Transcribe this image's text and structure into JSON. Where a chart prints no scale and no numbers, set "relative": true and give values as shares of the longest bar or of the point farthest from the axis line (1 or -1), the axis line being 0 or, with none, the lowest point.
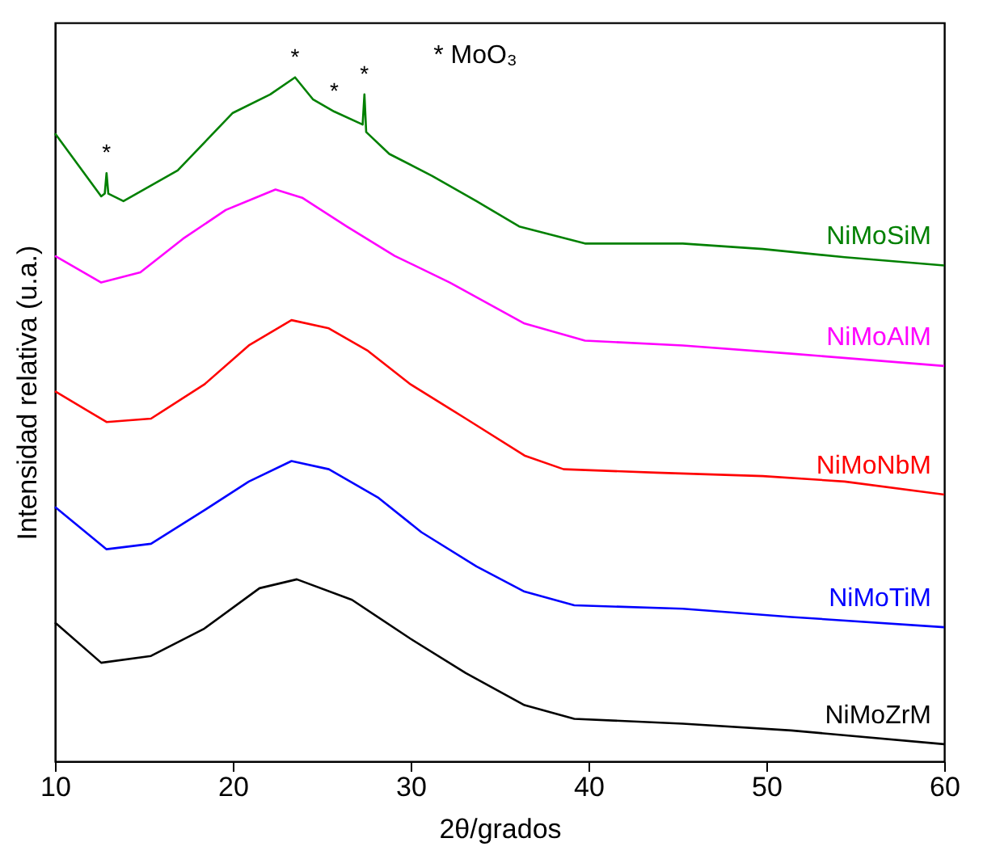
{
  "chart_data": {
    "type": "line",
    "xlabel": "2θ/grados",
    "ylabel": "Intensidad relativa (u.a.)",
    "relative": true,
    "xlim": [
      10,
      60
    ],
    "xticks": [
      10,
      20,
      30,
      40,
      50,
      60
    ],
    "legend": false,
    "x": [
      10,
      12.6,
      12.8,
      12.9,
      13.0,
      13.85,
      16.9,
      20,
      22.1,
      23.5,
      24.5,
      25.7,
      27.3,
      27.4,
      27.5,
      28.8,
      31.2,
      33.7,
      36.1,
      39.8,
      45.3,
      49.8,
      54.4,
      60
    ],
    "series": [
      {
        "name": "NiMoSiM",
        "color": "#008000",
        "values": [
          0.918,
          0.826,
          0.83,
          0.86,
          0.83,
          0.819,
          0.864,
          0.948,
          0.975,
          1.0,
          0.968,
          0.95,
          0.931,
          0.975,
          0.92,
          0.888,
          0.856,
          0.819,
          0.782,
          0.757,
          0.757,
          0.749,
          0.737,
          0.725
        ]
      },
      {
        "name": "NiMoAlM",
        "color": "#ff00ff",
        "x": [
          10,
          12.6,
          14.8,
          17.2,
          19.6,
          22.4,
          23.9,
          26.4,
          29.1,
          32.2,
          36.4,
          39.8,
          45.3,
          51.4,
          60
        ],
        "values": [
          0.739,
          0.7,
          0.715,
          0.764,
          0.806,
          0.836,
          0.824,
          0.782,
          0.739,
          0.7,
          0.64,
          0.615,
          0.608,
          0.596,
          0.578
        ]
      },
      {
        "name": "NiMoNbM",
        "color": "#ff0000",
        "x": [
          10,
          12.9,
          15.4,
          18.4,
          20.9,
          23.3,
          25.4,
          27.6,
          30,
          33.1,
          36.4,
          38.6,
          43.8,
          49.8,
          54.4,
          60
        ],
        "values": [
          0.541,
          0.496,
          0.501,
          0.551,
          0.608,
          0.645,
          0.633,
          0.6,
          0.551,
          0.501,
          0.447,
          0.427,
          0.422,
          0.417,
          0.409,
          0.39
        ]
      },
      {
        "name": "NiMoTiM",
        "color": "#0000ff",
        "x": [
          10,
          12.9,
          15.4,
          18.4,
          20.9,
          23.3,
          25.4,
          28.2,
          30.6,
          33.7,
          36.4,
          39.2,
          45.3,
          51.4,
          60
        ],
        "values": [
          0.372,
          0.31,
          0.318,
          0.367,
          0.409,
          0.439,
          0.427,
          0.385,
          0.335,
          0.285,
          0.248,
          0.228,
          0.223,
          0.211,
          0.196
        ]
      },
      {
        "name": "NiMoZrM",
        "color": "#000000",
        "x": [
          10,
          12.6,
          15.4,
          18.4,
          21.5,
          23.6,
          26.7,
          30,
          33.1,
          36.4,
          39.2,
          45.3,
          51.4,
          60
        ],
        "values": [
          0.203,
          0.144,
          0.154,
          0.194,
          0.253,
          0.266,
          0.236,
          0.179,
          0.129,
          0.082,
          0.062,
          0.055,
          0.045,
          0.025
        ]
      }
    ],
    "annotations": [
      "* MoO₃",
      {
        "text": "*",
        "x": 12.9,
        "y": 0.86
      },
      {
        "text": "*",
        "x": 23.5,
        "y": 1.0
      },
      {
        "text": "*",
        "x": 25.7,
        "y": 0.95
      },
      {
        "text": "*",
        "x": 27.4,
        "y": 0.975
      }
    ]
  }
}
